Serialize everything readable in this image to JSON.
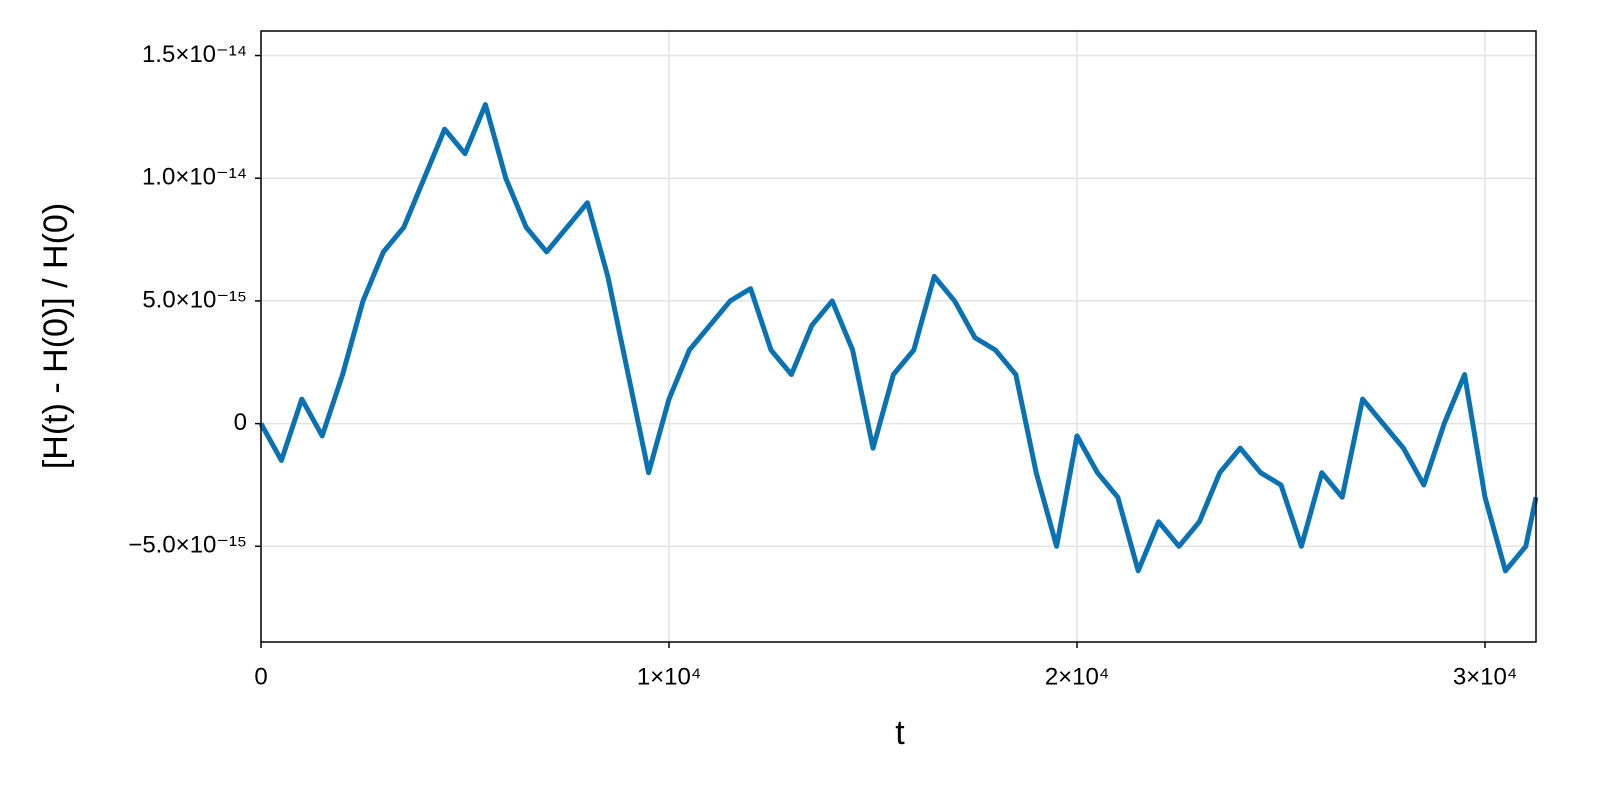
{
  "chart_data": {
    "type": "line",
    "x_label": "t",
    "y_label": "[H(t) - H(0)] / H(0)",
    "x": [
      0,
      500,
      1000,
      1500,
      2000,
      2500,
      3000,
      3500,
      4000,
      4500,
      5000,
      5500,
      6000,
      6500,
      7000,
      7500,
      8000,
      8500,
      9000,
      9500,
      10000,
      10500,
      11000,
      11500,
      12000,
      12500,
      13000,
      13500,
      14000,
      14500,
      15000,
      15500,
      16000,
      16500,
      17000,
      17500,
      18000,
      18500,
      19000,
      19500,
      20000,
      20500,
      21000,
      21500,
      22000,
      22500,
      23000,
      23500,
      24000,
      24500,
      25000,
      25500,
      26000,
      26500,
      27000,
      27500,
      28000,
      28500,
      29000,
      29500,
      30000,
      30500,
      31000,
      31250
    ],
    "series": [
      {
        "name": "H",
        "color": "#0a72b2",
        "values": [
          0,
          -1.5e-15,
          1e-15,
          -5e-16,
          2e-15,
          5e-15,
          7e-15,
          8e-15,
          1e-14,
          1.2e-14,
          1.1e-14,
          1.3e-14,
          1e-14,
          8e-15,
          7e-15,
          8e-15,
          9e-15,
          6e-15,
          2e-15,
          -2e-15,
          1e-15,
          3e-15,
          4e-15,
          5e-15,
          5.5e-15,
          3e-15,
          2e-15,
          4e-15,
          5e-15,
          3e-15,
          -1e-15,
          2e-15,
          3e-15,
          6e-15,
          5e-15,
          3.5e-15,
          3e-15,
          2e-15,
          -2e-15,
          -5e-15,
          -5e-16,
          -2e-15,
          -3e-15,
          -6e-15,
          -4e-15,
          -5e-15,
          -4e-15,
          -2e-15,
          -1e-15,
          -2e-15,
          -2.5e-15,
          -5e-15,
          -2e-15,
          -3e-15,
          1e-15,
          0,
          -1e-15,
          -2.5e-15,
          0,
          2e-15,
          -3e-15,
          -6e-15,
          -5e-15,
          -3e-15
        ]
      }
    ],
    "xlim": [
      0,
      31250
    ],
    "ylim": [
      -8.9e-15,
      1.6e-14
    ],
    "xticks": [
      0,
      {
        "value": 10000,
        "label": "1×10⁴"
      },
      {
        "value": 20000,
        "label": "2×10⁴"
      },
      {
        "value": 30000,
        "label": "3×10⁴"
      }
    ],
    "yticks": [
      {
        "value": -5e-15,
        "label": "−5.0×10⁻¹⁵"
      },
      0,
      {
        "value": 5e-15,
        "label": "5.0×10⁻¹⁵"
      },
      {
        "value": 1e-14,
        "label": "1.0×10⁻¹⁴"
      },
      {
        "value": 1.5e-14,
        "label": "1.5×10⁻¹⁴"
      }
    ],
    "grid": true
  }
}
